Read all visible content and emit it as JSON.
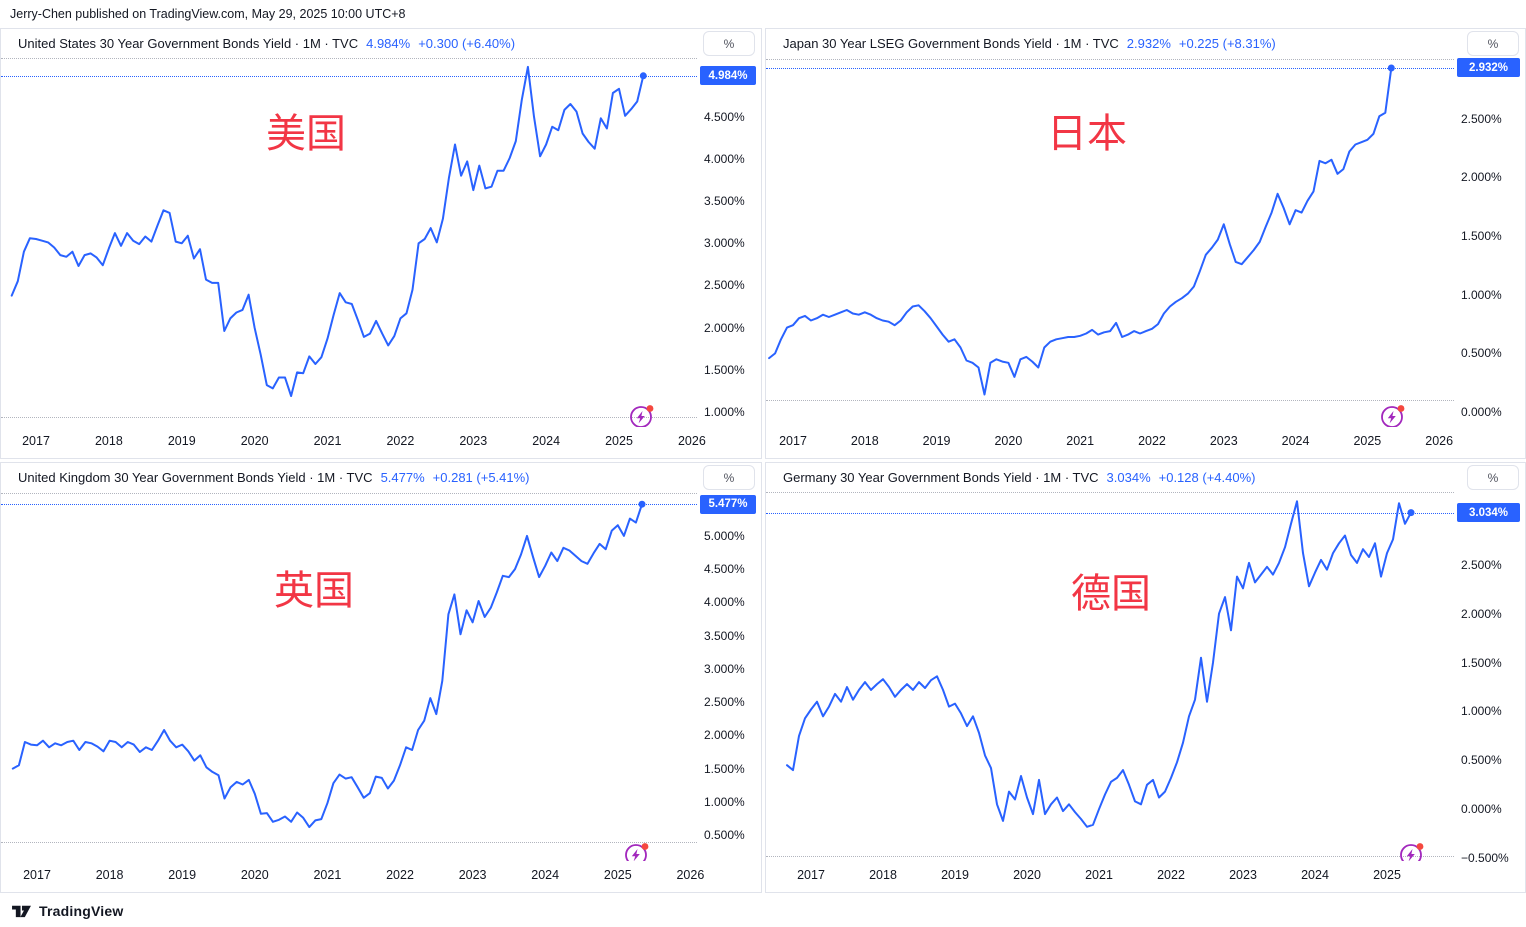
{
  "attribution": "Jerry-Chen published on TradingView.com, May 29, 2025 10:00 UTC+8",
  "axis_unit_button": "%",
  "footer": {
    "brand": "TradingView"
  },
  "colors": {
    "accent": "#2962FF",
    "annotation_red": "#F23645",
    "flash_purple": "#A228BD",
    "flash_dot_red": "#F5483F",
    "text": "#131722",
    "panel_border": "#E0E3EB",
    "dotted_gray": "#B2B5BE"
  },
  "chart_data": [
    {
      "type": "line",
      "title": "United States 30 Year Government Bonds Yield · 1M · TVC",
      "last_price": "4.984%",
      "change": "+0.300 (+6.40%)",
      "annotation": "美国",
      "interval": "1M",
      "series_start": "2016-09",
      "series_end": "2025-05",
      "last_value": 4.984,
      "ylim": [
        0.823,
        5.195
      ],
      "high_line": 5.19,
      "low_line": 0.94,
      "legend_position": "top-left",
      "grid": false,
      "y_ticks": [
        {
          "v": 4.5,
          "label": "4.500%"
        },
        {
          "v": 4.0,
          "label": "4.000%"
        },
        {
          "v": 3.5,
          "label": "3.500%"
        },
        {
          "v": 3.0,
          "label": "3.000%"
        },
        {
          "v": 2.5,
          "label": "2.500%"
        },
        {
          "v": 2.0,
          "label": "2.000%"
        },
        {
          "v": 1.5,
          "label": "1.500%"
        },
        {
          "v": 1.0,
          "label": "1.000%"
        }
      ],
      "x_years": [
        2017,
        2018,
        2019,
        2020,
        2021,
        2022,
        2023,
        2024,
        2025,
        2026
      ],
      "values": [
        2.38,
        2.55,
        2.9,
        3.06,
        3.05,
        3.03,
        3.01,
        2.95,
        2.86,
        2.84,
        2.9,
        2.73,
        2.86,
        2.88,
        2.83,
        2.74,
        2.94,
        3.12,
        2.97,
        3.12,
        3.03,
        2.99,
        3.08,
        3.02,
        3.21,
        3.39,
        3.36,
        3.02,
        3.0,
        3.09,
        2.82,
        2.93,
        2.57,
        2.53,
        2.53,
        1.96,
        2.11,
        2.18,
        2.21,
        2.39,
        2.0,
        1.68,
        1.32,
        1.28,
        1.41,
        1.41,
        1.19,
        1.47,
        1.46,
        1.66,
        1.57,
        1.65,
        1.87,
        2.15,
        2.41,
        2.3,
        2.28,
        2.09,
        1.89,
        1.93,
        2.08,
        1.93,
        1.79,
        1.9,
        2.11,
        2.17,
        2.45,
        3.0,
        3.05,
        3.18,
        3.01,
        3.29,
        3.78,
        4.17,
        3.8,
        3.97,
        3.63,
        3.92,
        3.65,
        3.67,
        3.86,
        3.86,
        4.01,
        4.21,
        4.7,
        5.09,
        4.5,
        4.03,
        4.17,
        4.38,
        4.34,
        4.58,
        4.65,
        4.56,
        4.3,
        4.2,
        4.12,
        4.48,
        4.36,
        4.78,
        4.83,
        4.51,
        4.59,
        4.68,
        4.984
      ]
    },
    {
      "type": "line",
      "title": "Japan 30 Year LSEG Government Bonds Yield · 1M · TVC",
      "last_price": "2.932%",
      "change": "+0.225 (+8.31%)",
      "annotation": "日本",
      "interval": "1M",
      "series_start": "2016-09",
      "series_end": "2025-05",
      "last_value": 2.932,
      "ylim": [
        -0.127,
        3.017
      ],
      "high_line": 3.01,
      "low_line": 0.1,
      "legend_position": "top-left",
      "grid": false,
      "y_ticks": [
        {
          "v": 2.5,
          "label": "2.500%"
        },
        {
          "v": 2.0,
          "label": "2.000%"
        },
        {
          "v": 1.5,
          "label": "1.500%"
        },
        {
          "v": 1.0,
          "label": "1.000%"
        },
        {
          "v": 0.5,
          "label": "0.500%"
        },
        {
          "v": 0.0,
          "label": "0.000%"
        }
      ],
      "x_years": [
        2017,
        2018,
        2019,
        2020,
        2021,
        2022,
        2023,
        2024,
        2025,
        2026
      ],
      "values": [
        0.46,
        0.5,
        0.62,
        0.72,
        0.74,
        0.8,
        0.82,
        0.78,
        0.8,
        0.83,
        0.81,
        0.83,
        0.85,
        0.87,
        0.84,
        0.83,
        0.85,
        0.83,
        0.8,
        0.78,
        0.77,
        0.74,
        0.78,
        0.85,
        0.9,
        0.91,
        0.86,
        0.8,
        0.73,
        0.66,
        0.6,
        0.62,
        0.55,
        0.44,
        0.42,
        0.38,
        0.15,
        0.42,
        0.45,
        0.43,
        0.42,
        0.3,
        0.45,
        0.47,
        0.43,
        0.38,
        0.55,
        0.6,
        0.62,
        0.63,
        0.64,
        0.64,
        0.65,
        0.67,
        0.7,
        0.66,
        0.68,
        0.69,
        0.76,
        0.64,
        0.66,
        0.69,
        0.67,
        0.69,
        0.71,
        0.75,
        0.84,
        0.9,
        0.94,
        0.97,
        1.01,
        1.07,
        1.2,
        1.34,
        1.4,
        1.47,
        1.6,
        1.43,
        1.28,
        1.26,
        1.32,
        1.38,
        1.45,
        1.58,
        1.7,
        1.86,
        1.74,
        1.6,
        1.72,
        1.7,
        1.8,
        1.88,
        2.14,
        2.12,
        2.15,
        2.03,
        2.07,
        2.22,
        2.28,
        2.3,
        2.32,
        2.37,
        2.52,
        2.55,
        2.932
      ]
    },
    {
      "type": "line",
      "title": "United Kingdom 30 Year Government Bonds Yield · 1M · TVC",
      "last_price": "5.477%",
      "change": "+0.281 (+5.41%)",
      "annotation": "英国",
      "interval": "1M",
      "series_start": "2016-09",
      "series_end": "2025-05",
      "last_value": 5.477,
      "ylim": [
        0.11,
        5.66
      ],
      "high_line": 5.65,
      "low_line": 0.4,
      "legend_position": "top-left",
      "grid": false,
      "y_ticks": [
        {
          "v": 5.0,
          "label": "5.000%"
        },
        {
          "v": 4.5,
          "label": "4.500%"
        },
        {
          "v": 4.0,
          "label": "4.000%"
        },
        {
          "v": 3.5,
          "label": "3.500%"
        },
        {
          "v": 3.0,
          "label": "3.000%"
        },
        {
          "v": 2.5,
          "label": "2.500%"
        },
        {
          "v": 2.0,
          "label": "2.000%"
        },
        {
          "v": 1.5,
          "label": "1.500%"
        },
        {
          "v": 1.0,
          "label": "1.000%"
        },
        {
          "v": 0.5,
          "label": "0.500%"
        }
      ],
      "x_years": [
        2017,
        2018,
        2019,
        2020,
        2021,
        2022,
        2023,
        2024,
        2025,
        2026
      ],
      "values": [
        1.5,
        1.55,
        1.9,
        1.86,
        1.85,
        1.92,
        1.82,
        1.88,
        1.85,
        1.9,
        1.92,
        1.78,
        1.9,
        1.88,
        1.83,
        1.76,
        1.92,
        1.9,
        1.82,
        1.9,
        1.86,
        1.75,
        1.82,
        1.78,
        1.92,
        2.08,
        1.92,
        1.82,
        1.86,
        1.76,
        1.62,
        1.7,
        1.52,
        1.45,
        1.4,
        1.05,
        1.22,
        1.3,
        1.26,
        1.33,
        1.12,
        0.82,
        0.83,
        0.7,
        0.73,
        0.78,
        0.7,
        0.84,
        0.76,
        0.62,
        0.72,
        0.74,
        0.98,
        1.28,
        1.41,
        1.35,
        1.37,
        1.22,
        1.06,
        1.13,
        1.38,
        1.36,
        1.2,
        1.32,
        1.55,
        1.82,
        1.78,
        2.08,
        2.22,
        2.56,
        2.32,
        2.82,
        3.82,
        4.12,
        3.52,
        3.88,
        3.7,
        4.02,
        3.78,
        3.92,
        4.15,
        4.4,
        4.38,
        4.5,
        4.72,
        5.0,
        4.68,
        4.38,
        4.55,
        4.75,
        4.62,
        4.82,
        4.78,
        4.7,
        4.62,
        4.58,
        4.74,
        4.88,
        4.8,
        5.08,
        5.16,
        5.0,
        5.26,
        5.2,
        5.477
      ]
    },
    {
      "type": "line",
      "title": "Germany 30 Year Government Bonds Yield · 1M · TVC",
      "last_price": "3.034%",
      "change": "+0.128 (+4.40%)",
      "annotation": "德国",
      "interval": "1M",
      "series_start": "2016-09",
      "series_end": "2025-05",
      "last_value": 3.034,
      "ylim": [
        -0.53,
        3.245
      ],
      "high_line": 3.24,
      "low_line": -0.48,
      "legend_position": "top-left",
      "grid": false,
      "y_ticks": [
        {
          "v": 2.5,
          "label": "2.500%"
        },
        {
          "v": 2.0,
          "label": "2.000%"
        },
        {
          "v": 1.5,
          "label": "1.500%"
        },
        {
          "v": 1.0,
          "label": "1.000%"
        },
        {
          "v": 0.5,
          "label": "0.500%"
        },
        {
          "v": 0.0,
          "label": "0.000%"
        },
        {
          "v": -0.5,
          "label": "−0.500%"
        }
      ],
      "x_years": [
        2017,
        2018,
        2019,
        2020,
        2021,
        2022,
        2023,
        2024,
        2025
      ],
      "values": [
        0.45,
        0.4,
        0.75,
        0.93,
        1.02,
        1.1,
        0.95,
        1.05,
        1.18,
        1.1,
        1.25,
        1.12,
        1.22,
        1.3,
        1.22,
        1.28,
        1.33,
        1.25,
        1.15,
        1.22,
        1.28,
        1.22,
        1.3,
        1.24,
        1.32,
        1.36,
        1.22,
        1.05,
        1.08,
        0.98,
        0.85,
        0.95,
        0.78,
        0.55,
        0.42,
        0.05,
        -0.12,
        0.18,
        0.1,
        0.34,
        0.12,
        -0.05,
        0.3,
        -0.05,
        0.05,
        0.12,
        -0.02,
        0.05,
        -0.03,
        -0.1,
        -0.18,
        -0.16,
        0.0,
        0.15,
        0.28,
        0.32,
        0.4,
        0.25,
        0.08,
        0.05,
        0.25,
        0.3,
        0.12,
        0.18,
        0.32,
        0.48,
        0.68,
        0.95,
        1.12,
        1.55,
        1.1,
        1.5,
        2.0,
        2.17,
        1.83,
        2.38,
        2.26,
        2.52,
        2.32,
        2.4,
        2.48,
        2.4,
        2.52,
        2.68,
        2.92,
        3.15,
        2.62,
        2.28,
        2.42,
        2.55,
        2.45,
        2.62,
        2.72,
        2.8,
        2.6,
        2.52,
        2.66,
        2.58,
        2.72,
        2.38,
        2.62,
        2.76,
        3.13,
        2.92,
        3.034
      ]
    }
  ]
}
